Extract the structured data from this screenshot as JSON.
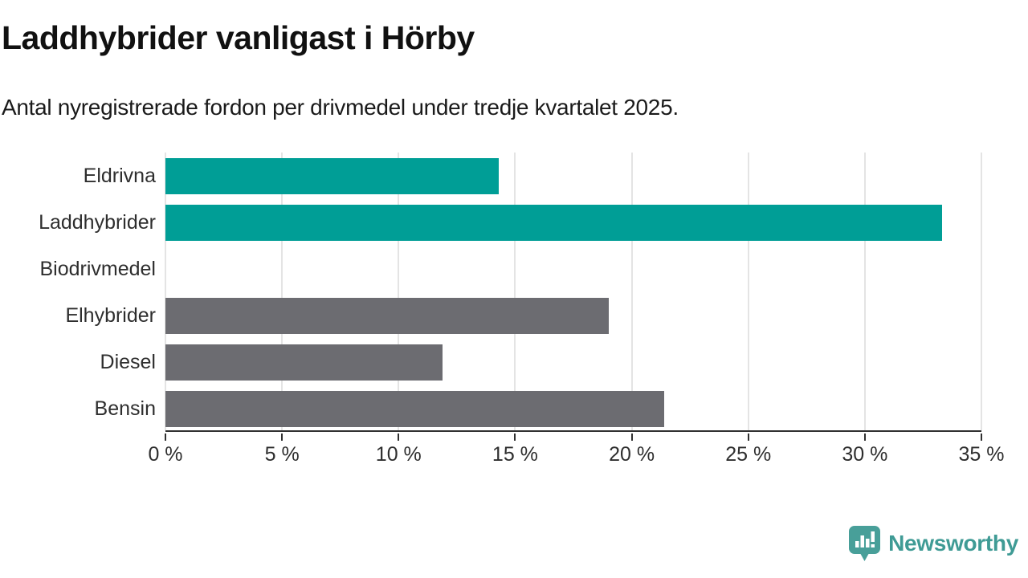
{
  "header": {
    "title": "Laddhybrider vanligast i Hörby",
    "subtitle": "Antal nyregistrerade fordon per drivmedel under tredje kvartalet 2025."
  },
  "colors": {
    "accent_teal": "#009e96",
    "bar_gray": "#6c6c71",
    "logo_teal": "#3f9b95",
    "gridline": "#e4e4e4",
    "axis": "#303030",
    "text_dark": "#1a1a1a"
  },
  "chart_data": {
    "type": "bar",
    "orientation": "horizontal",
    "title": "Laddhybrider vanligast i Hörby",
    "subtitle": "Antal nyregistrerade fordon per drivmedel under tredje kvartalet 2025.",
    "categories": [
      "Eldrivna",
      "Laddhybrider",
      "Biodrivmedel",
      "Elhybrider",
      "Diesel",
      "Bensin"
    ],
    "values": [
      14.3,
      33.3,
      0,
      19.0,
      11.9,
      21.4
    ],
    "unit": "%",
    "bar_colors": [
      "#009e96",
      "#009e96",
      "#6c6c71",
      "#6c6c71",
      "#6c6c71",
      "#6c6c71"
    ],
    "xlim": [
      0,
      35
    ],
    "xticks": [
      0,
      5,
      10,
      15,
      20,
      25,
      30,
      35
    ],
    "xtick_labels": [
      "0 %",
      "5 %",
      "10 %",
      "15 %",
      "20 %",
      "25 %",
      "30 %",
      "35 %"
    ],
    "grid": true,
    "legend": false
  },
  "footer": {
    "brand": "Newsworthy",
    "logo_icon": "newsworthy-chart-bubble-icon"
  }
}
